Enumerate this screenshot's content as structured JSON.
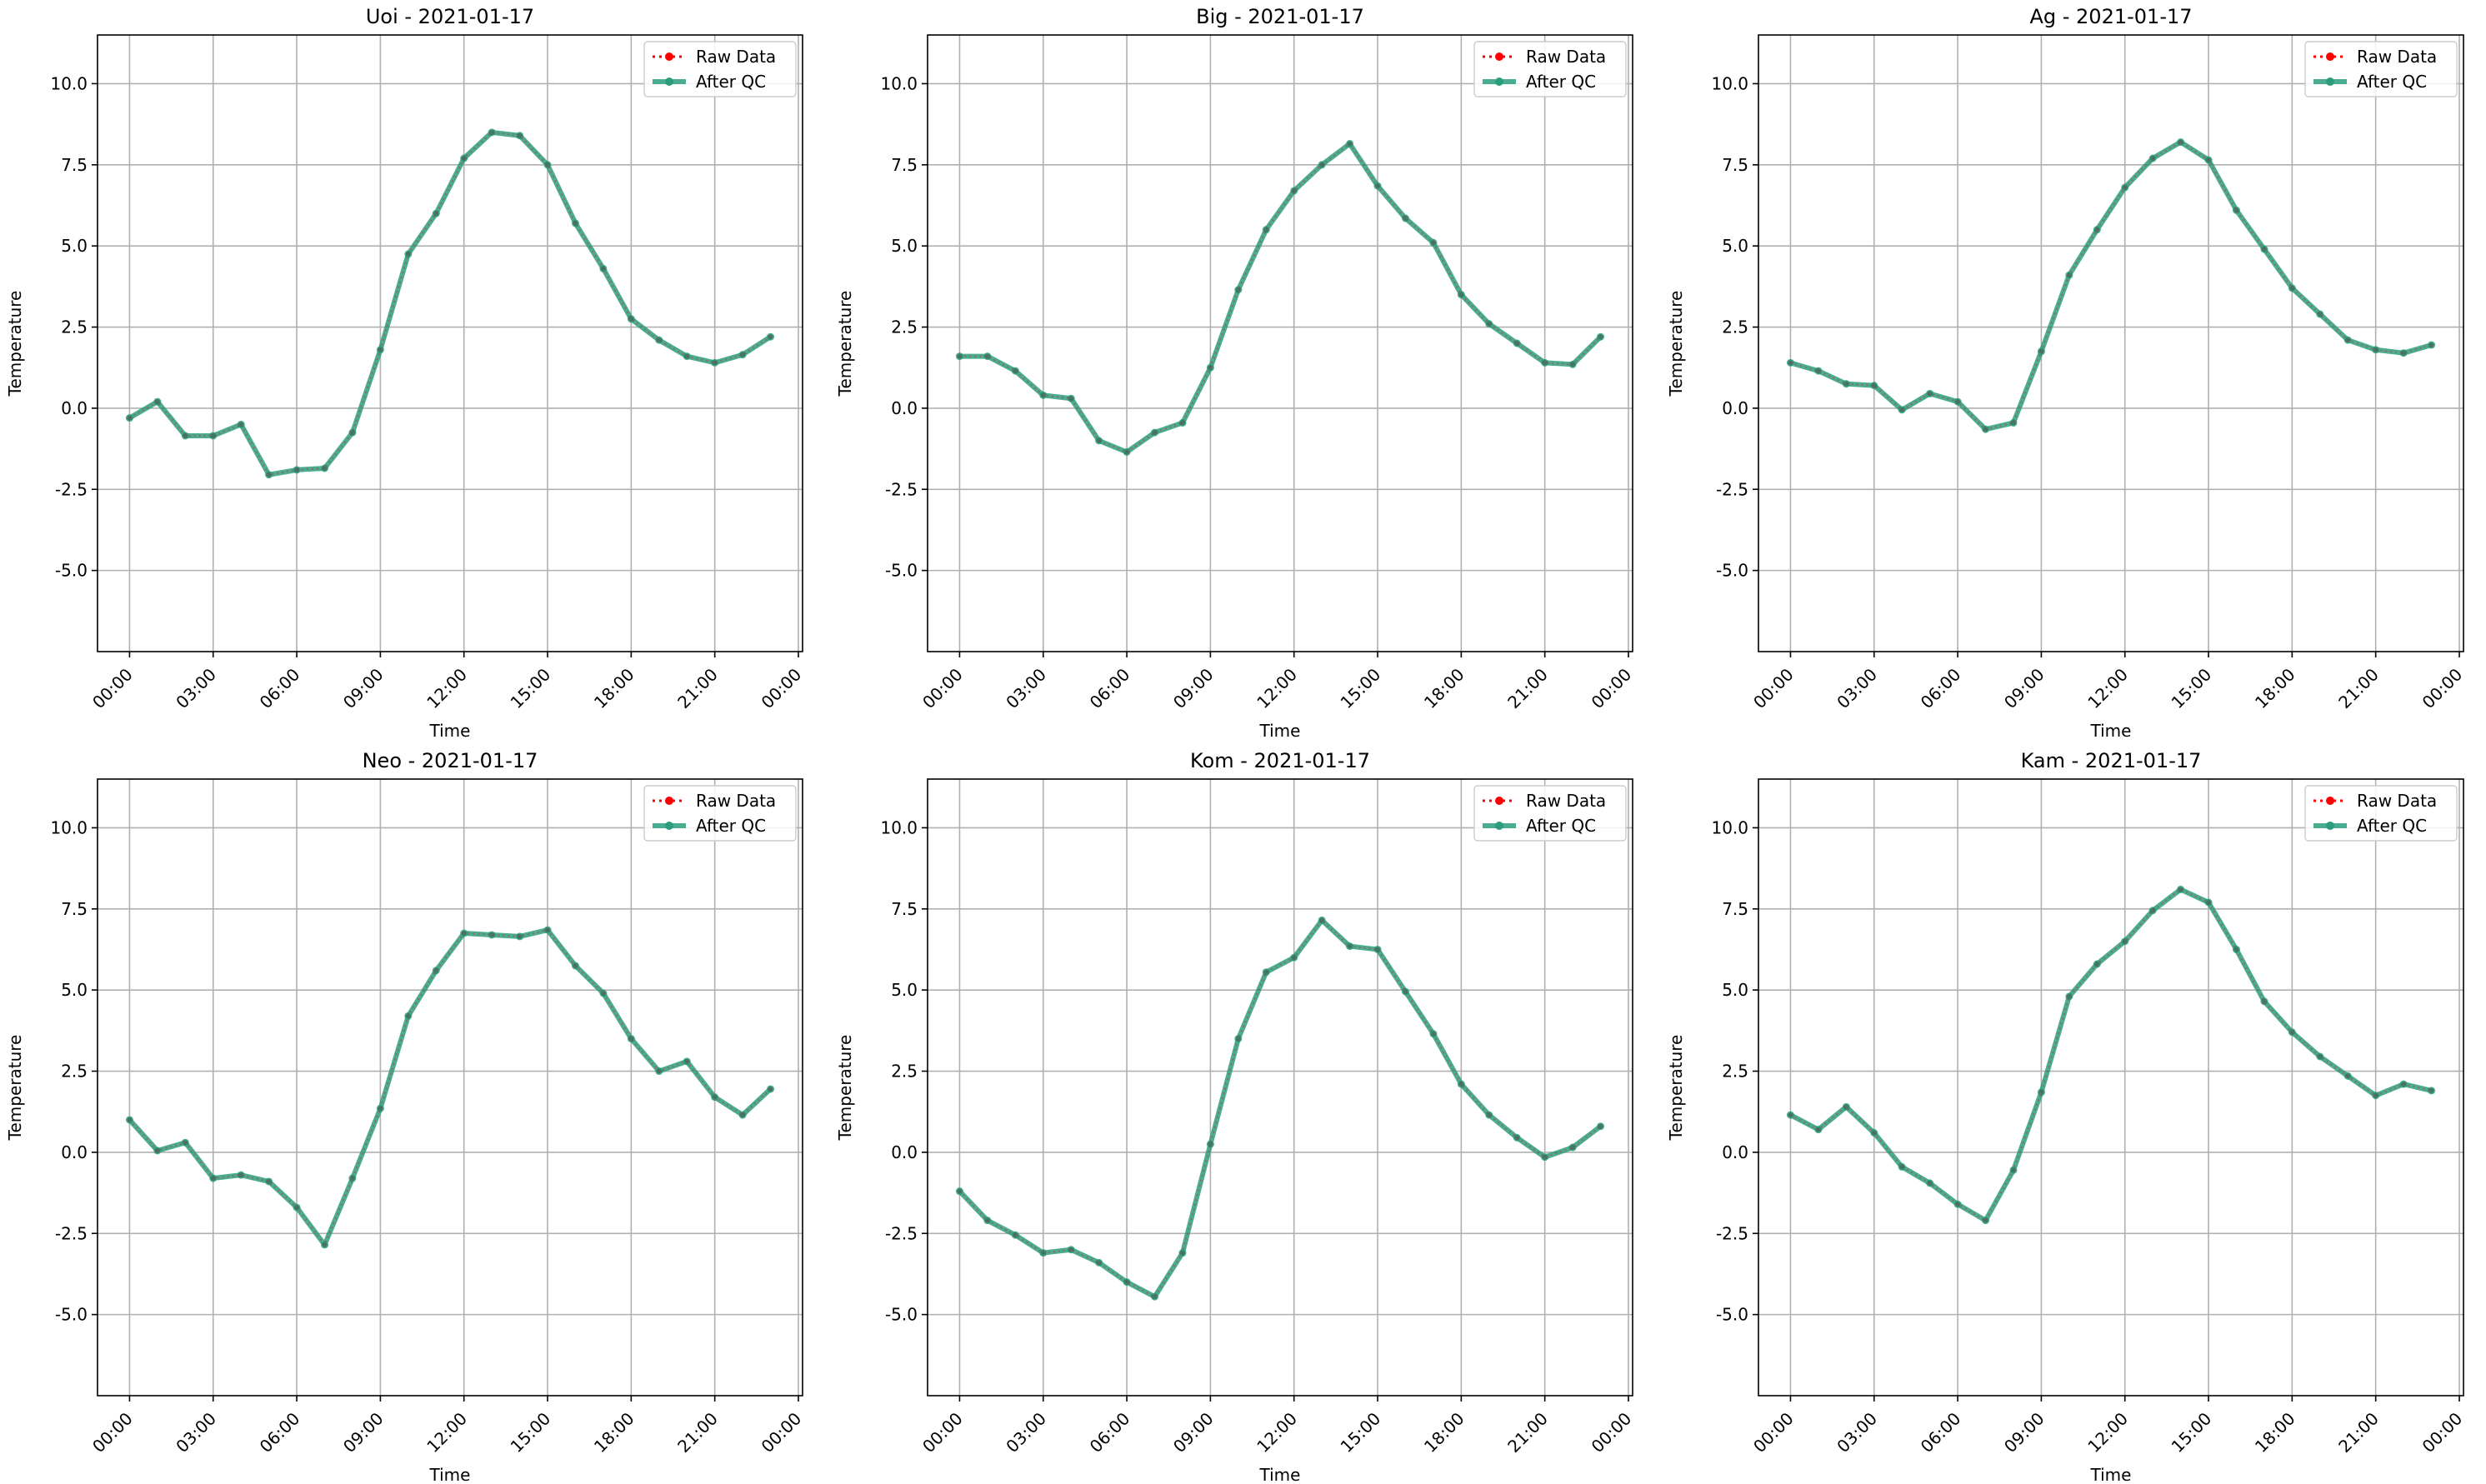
{
  "legend": {
    "raw_label": "Raw Data",
    "qc_label": "After QC"
  },
  "colors": {
    "raw": "#ff0000",
    "qc": "#2a9d7c",
    "grid": "#b0b0b0",
    "axis": "#000000"
  },
  "chart_data": [
    {
      "type": "line",
      "title": "Uoi - 2021-01-17",
      "xlabel": "Time",
      "ylabel": "Temperature",
      "x_ticks": [
        "00:00",
        "03:00",
        "06:00",
        "09:00",
        "12:00",
        "15:00",
        "18:00",
        "21:00",
        "00:00"
      ],
      "y_ticks": [
        "-5.0",
        "-2.5",
        "0.0",
        "2.5",
        "5.0",
        "7.5",
        "10.0"
      ],
      "xlim_hours": [
        -1.15,
        24.15
      ],
      "ylim": [
        -7.5,
        11.5
      ],
      "grid": true,
      "legend_position": "top-right",
      "x_hours": [
        0,
        1,
        2,
        3,
        4,
        5,
        6,
        7,
        8,
        9,
        10,
        11,
        12,
        13,
        14,
        15,
        16,
        17,
        18,
        19,
        20,
        21,
        22,
        23
      ],
      "series": [
        {
          "name": "Raw Data",
          "values": [
            -0.3,
            0.2,
            -0.85,
            -0.85,
            -0.5,
            -2.05,
            -1.9,
            -1.85,
            -0.75,
            1.8,
            4.75,
            6.0,
            7.7,
            8.5,
            8.4,
            7.5,
            5.7,
            4.3,
            2.75,
            2.1,
            1.6,
            1.4,
            1.65,
            2.2
          ]
        },
        {
          "name": "After QC",
          "values": [
            -0.3,
            0.2,
            -0.85,
            -0.85,
            -0.5,
            -2.05,
            -1.9,
            -1.85,
            -0.75,
            1.8,
            4.75,
            6.0,
            7.7,
            8.5,
            8.4,
            7.5,
            5.7,
            4.3,
            2.75,
            2.1,
            1.6,
            1.4,
            1.65,
            2.2
          ]
        }
      ]
    },
    {
      "type": "line",
      "title": "Big - 2021-01-17",
      "xlabel": "Time",
      "ylabel": "Temperature",
      "x_ticks": [
        "00:00",
        "03:00",
        "06:00",
        "09:00",
        "12:00",
        "15:00",
        "18:00",
        "21:00",
        "00:00"
      ],
      "y_ticks": [
        "-5.0",
        "-2.5",
        "0.0",
        "2.5",
        "5.0",
        "7.5",
        "10.0"
      ],
      "xlim_hours": [
        -1.15,
        24.15
      ],
      "ylim": [
        -7.5,
        11.5
      ],
      "grid": true,
      "legend_position": "top-right",
      "x_hours": [
        0,
        1,
        2,
        3,
        4,
        5,
        6,
        7,
        8,
        9,
        10,
        11,
        12,
        13,
        14,
        15,
        16,
        17,
        18,
        19,
        20,
        21,
        22,
        23
      ],
      "series": [
        {
          "name": "Raw Data",
          "values": [
            1.6,
            1.6,
            1.15,
            0.4,
            0.3,
            -1.0,
            -1.35,
            -0.75,
            -0.45,
            1.25,
            3.65,
            5.5,
            6.7,
            7.5,
            8.15,
            6.85,
            5.85,
            5.1,
            3.5,
            2.6,
            2.0,
            1.4,
            1.35,
            2.2
          ]
        },
        {
          "name": "After QC",
          "values": [
            1.6,
            1.6,
            1.15,
            0.4,
            0.3,
            -1.0,
            -1.35,
            -0.75,
            -0.45,
            1.25,
            3.65,
            5.5,
            6.7,
            7.5,
            8.15,
            6.85,
            5.85,
            5.1,
            3.5,
            2.6,
            2.0,
            1.4,
            1.35,
            2.2
          ]
        }
      ]
    },
    {
      "type": "line",
      "title": "Ag - 2021-01-17",
      "xlabel": "Time",
      "ylabel": "Temperature",
      "x_ticks": [
        "00:00",
        "03:00",
        "06:00",
        "09:00",
        "12:00",
        "15:00",
        "18:00",
        "21:00",
        "00:00"
      ],
      "y_ticks": [
        "-5.0",
        "-2.5",
        "0.0",
        "2.5",
        "5.0",
        "7.5",
        "10.0"
      ],
      "xlim_hours": [
        -1.15,
        24.15
      ],
      "ylim": [
        -7.5,
        11.5
      ],
      "grid": true,
      "legend_position": "top-right",
      "x_hours": [
        0,
        1,
        2,
        3,
        4,
        5,
        6,
        7,
        8,
        9,
        10,
        11,
        12,
        13,
        14,
        15,
        16,
        17,
        18,
        19,
        20,
        21,
        22,
        23
      ],
      "series": [
        {
          "name": "Raw Data",
          "values": [
            1.4,
            1.15,
            0.75,
            0.7,
            -0.05,
            0.45,
            0.2,
            -0.65,
            -0.45,
            1.75,
            4.1,
            5.5,
            6.8,
            7.7,
            8.2,
            7.65,
            6.1,
            4.9,
            3.7,
            2.9,
            2.1,
            1.8,
            1.7,
            1.95
          ]
        },
        {
          "name": "After QC",
          "values": [
            1.4,
            1.15,
            0.75,
            0.7,
            -0.05,
            0.45,
            0.2,
            -0.65,
            -0.45,
            1.75,
            4.1,
            5.5,
            6.8,
            7.7,
            8.2,
            7.65,
            6.1,
            4.9,
            3.7,
            2.9,
            2.1,
            1.8,
            1.7,
            1.95
          ]
        }
      ]
    },
    {
      "type": "line",
      "title": "Neo - 2021-01-17",
      "xlabel": "Time",
      "ylabel": "Temperature",
      "x_ticks": [
        "00:00",
        "03:00",
        "06:00",
        "09:00",
        "12:00",
        "15:00",
        "18:00",
        "21:00",
        "00:00"
      ],
      "y_ticks": [
        "-5.0",
        "-2.5",
        "0.0",
        "2.5",
        "5.0",
        "7.5",
        "10.0"
      ],
      "xlim_hours": [
        -1.15,
        24.15
      ],
      "ylim": [
        -7.5,
        11.5
      ],
      "grid": true,
      "legend_position": "top-right",
      "x_hours": [
        0,
        1,
        2,
        3,
        4,
        5,
        6,
        7,
        8,
        9,
        10,
        11,
        12,
        13,
        14,
        15,
        16,
        17,
        18,
        19,
        20,
        21,
        22,
        23
      ],
      "series": [
        {
          "name": "Raw Data",
          "values": [
            1.0,
            0.05,
            0.3,
            -0.8,
            -0.7,
            -0.9,
            -1.7,
            -2.85,
            -0.8,
            1.35,
            4.2,
            5.6,
            6.75,
            6.7,
            6.65,
            6.85,
            5.75,
            4.9,
            3.5,
            2.5,
            2.8,
            1.7,
            1.15,
            1.95
          ]
        },
        {
          "name": "After QC",
          "values": [
            1.0,
            0.05,
            0.3,
            -0.8,
            -0.7,
            -0.9,
            -1.7,
            -2.85,
            -0.8,
            1.35,
            4.2,
            5.6,
            6.75,
            6.7,
            6.65,
            6.85,
            5.75,
            4.9,
            3.5,
            2.5,
            2.8,
            1.7,
            1.15,
            1.95
          ]
        }
      ]
    },
    {
      "type": "line",
      "title": "Kom - 2021-01-17",
      "xlabel": "Time",
      "ylabel": "Temperature",
      "x_ticks": [
        "00:00",
        "03:00",
        "06:00",
        "09:00",
        "12:00",
        "15:00",
        "18:00",
        "21:00",
        "00:00"
      ],
      "y_ticks": [
        "-5.0",
        "-2.5",
        "0.0",
        "2.5",
        "5.0",
        "7.5",
        "10.0"
      ],
      "xlim_hours": [
        -1.15,
        24.15
      ],
      "ylim": [
        -7.5,
        11.5
      ],
      "grid": true,
      "legend_position": "top-right",
      "x_hours": [
        0,
        1,
        2,
        3,
        4,
        5,
        6,
        7,
        8,
        9,
        10,
        11,
        12,
        13,
        14,
        15,
        16,
        17,
        18,
        19,
        20,
        21,
        22,
        23
      ],
      "series": [
        {
          "name": "Raw Data",
          "values": [
            -1.2,
            -2.1,
            -2.55,
            -3.1,
            -3.0,
            -3.4,
            -4.0,
            -4.45,
            -3.1,
            0.25,
            3.5,
            5.55,
            6.0,
            7.15,
            6.35,
            6.25,
            4.95,
            3.65,
            2.1,
            1.15,
            0.45,
            -0.15,
            0.15,
            0.8
          ]
        },
        {
          "name": "After QC",
          "values": [
            -1.2,
            -2.1,
            -2.55,
            -3.1,
            -3.0,
            -3.4,
            -4.0,
            -4.45,
            -3.1,
            0.25,
            3.5,
            5.55,
            6.0,
            7.15,
            6.35,
            6.25,
            4.95,
            3.65,
            2.1,
            1.15,
            0.45,
            -0.15,
            0.15,
            0.8
          ]
        }
      ]
    },
    {
      "type": "line",
      "title": "Kam - 2021-01-17",
      "xlabel": "Time",
      "ylabel": "Temperature",
      "x_ticks": [
        "00:00",
        "03:00",
        "06:00",
        "09:00",
        "12:00",
        "15:00",
        "18:00",
        "21:00",
        "00:00"
      ],
      "y_ticks": [
        "-5.0",
        "-2.5",
        "0.0",
        "2.5",
        "5.0",
        "7.5",
        "10.0"
      ],
      "xlim_hours": [
        -1.15,
        24.15
      ],
      "ylim": [
        -7.5,
        11.5
      ],
      "grid": true,
      "legend_position": "top-right",
      "x_hours": [
        0,
        1,
        2,
        3,
        4,
        5,
        6,
        7,
        8,
        9,
        10,
        11,
        12,
        13,
        14,
        15,
        16,
        17,
        18,
        19,
        20,
        21,
        22,
        23
      ],
      "series": [
        {
          "name": "Raw Data",
          "values": [
            1.15,
            0.7,
            1.4,
            0.6,
            -0.45,
            -0.95,
            -1.6,
            -2.1,
            -0.55,
            1.85,
            4.8,
            5.8,
            6.5,
            7.45,
            8.1,
            7.7,
            6.25,
            4.65,
            3.7,
            2.95,
            2.35,
            1.75,
            2.1,
            1.9
          ]
        },
        {
          "name": "After QC",
          "values": [
            1.15,
            0.7,
            1.4,
            0.6,
            -0.45,
            -0.95,
            -1.6,
            -2.1,
            -0.55,
            1.85,
            4.8,
            5.8,
            6.5,
            7.45,
            8.1,
            7.7,
            6.25,
            4.65,
            3.7,
            2.95,
            2.35,
            1.75,
            2.1,
            1.9
          ]
        }
      ]
    }
  ]
}
